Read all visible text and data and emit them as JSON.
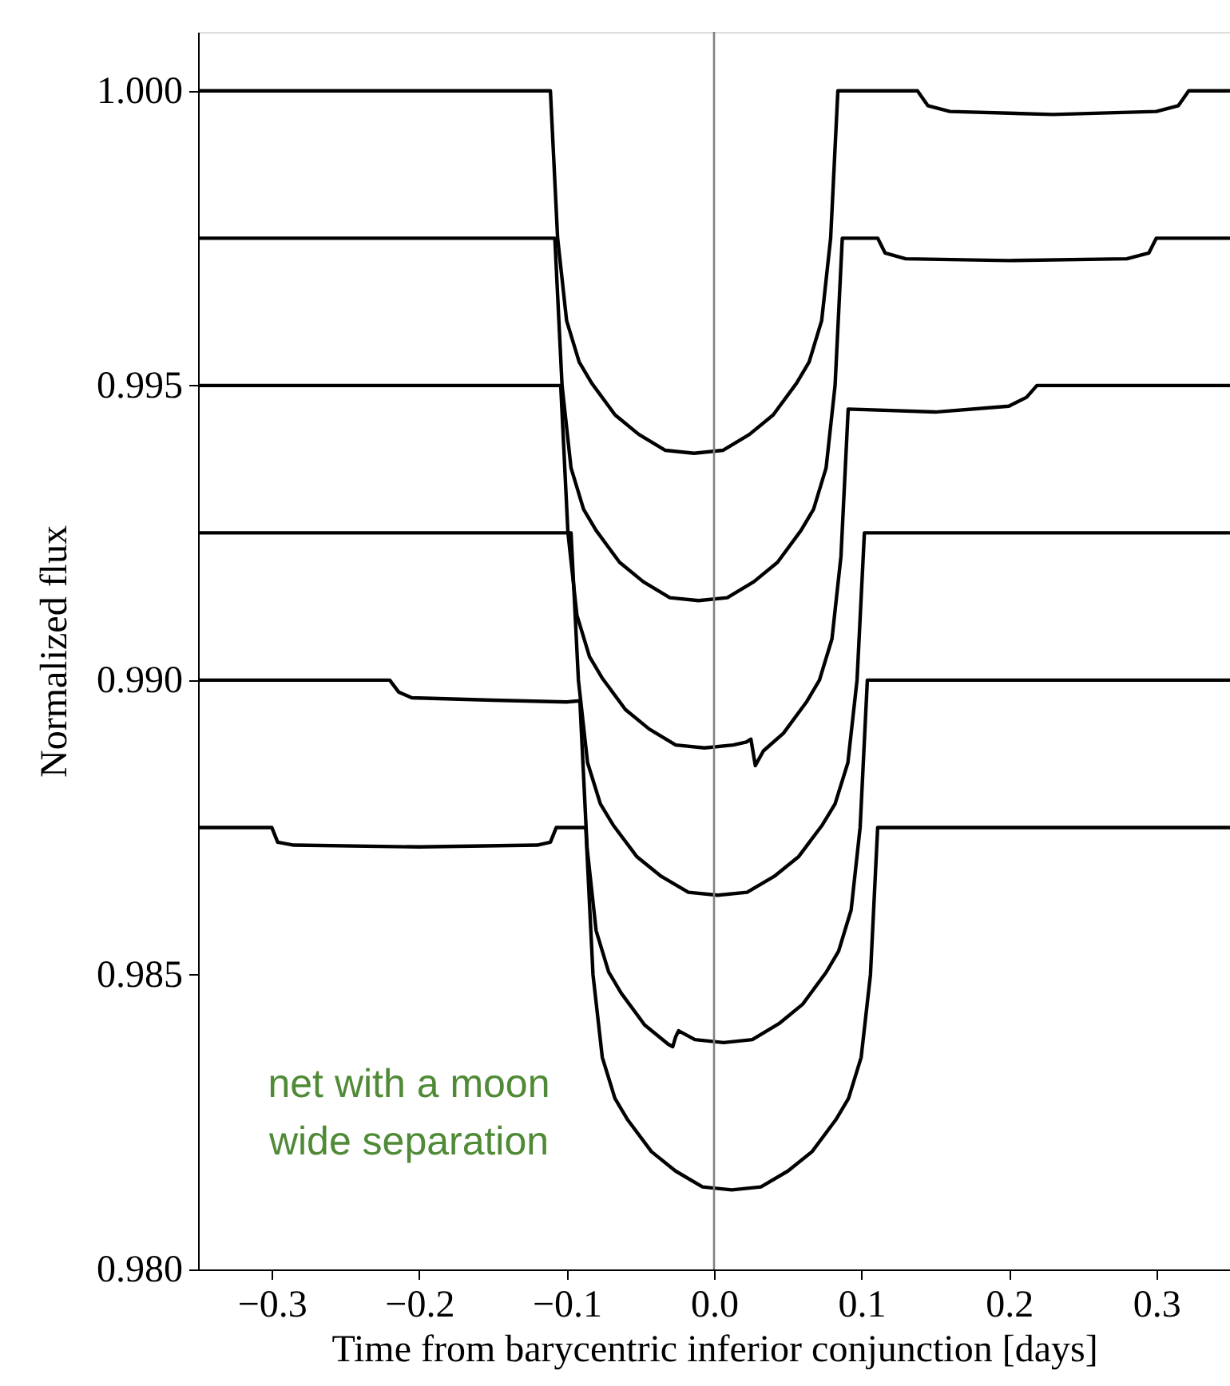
{
  "chart_data": {
    "type": "line",
    "xlabel": "Time from barycentric inferior conjunction [days]",
    "ylabel": "Normalized flux",
    "xlim": [
      -0.35,
      0.35
    ],
    "ylim": [
      0.98,
      1.001
    ],
    "xticks": [
      {
        "value": -0.3,
        "label": "−0.3"
      },
      {
        "value": -0.2,
        "label": "−0.2"
      },
      {
        "value": -0.1,
        "label": "−0.1"
      },
      {
        "value": 0,
        "label": "0.0"
      },
      0.1,
      0.2,
      0.3
    ],
    "yticks": [
      {
        "value": 0.98,
        "label": "0.980"
      },
      {
        "value": 0.985,
        "label": "0.985"
      },
      {
        "value": 0.99,
        "label": "0.990"
      },
      {
        "value": 0.995,
        "label": "0.995"
      },
      {
        "value": 1.0,
        "label": "1.000"
      }
    ],
    "grid": false,
    "legend": false,
    "marker": "none",
    "line_style": "solid",
    "ref_lines": [
      {
        "axis": "x",
        "value": 0,
        "color": "#808080"
      }
    ],
    "annotations": [
      "net with a moon\nwide separation"
    ],
    "series": [
      {
        "color": "#000000",
        "x": [
          -0.35,
          -0.111,
          -0.1061,
          -0.1,
          -0.0915,
          -0.083,
          -0.0671,
          -0.051,
          -0.033,
          -0.0135,
          0.006,
          0.024,
          0.0401,
          0.056,
          0.0645,
          0.073,
          0.0791,
          0.084,
          0.138,
          0.145,
          0.16,
          0.23,
          0.3,
          0.315,
          0.322,
          0.35
        ],
        "values": [
          1.0,
          1.0,
          0.9975,
          0.9961,
          0.9954,
          0.99504,
          0.9945,
          0.99417,
          0.9939,
          0.99385,
          0.9939,
          0.99417,
          0.9945,
          0.99504,
          0.9954,
          0.9961,
          0.9975,
          1.0,
          1.0,
          0.99975,
          0.99965,
          0.9996,
          0.99965,
          0.99975,
          1.0,
          1.0
        ]
      },
      {
        "color": "#000000",
        "x": [
          -0.35,
          -0.108,
          -0.1031,
          -0.097,
          -0.0885,
          -0.08,
          -0.0641,
          -0.048,
          -0.03,
          -0.0105,
          0.009,
          0.027,
          0.0431,
          0.059,
          0.0675,
          0.076,
          0.0821,
          0.087,
          0.111,
          0.116,
          0.13,
          0.2,
          0.28,
          0.295,
          0.3,
          0.35
        ],
        "values": [
          0.9975,
          0.9975,
          0.995,
          0.9936,
          0.9929,
          0.99254,
          0.992,
          0.99167,
          0.9914,
          0.99135,
          0.9914,
          0.99167,
          0.992,
          0.99254,
          0.9929,
          0.9936,
          0.995,
          0.9975,
          0.9975,
          0.99725,
          0.99715,
          0.99712,
          0.99715,
          0.99725,
          0.9975,
          0.9975
        ]
      },
      {
        "color": "#000000",
        "x": [
          -0.35,
          -0.104,
          -0.0991,
          -0.093,
          -0.0845,
          -0.076,
          -0.0601,
          -0.044,
          -0.026,
          -0.0065,
          0.013,
          0.022,
          0.025,
          0.028,
          0.0335,
          0.0471,
          0.063,
          0.0715,
          0.08,
          0.0861,
          0.091,
          0.15,
          0.2,
          0.212,
          0.219,
          0.35
        ],
        "values": [
          0.995,
          0.995,
          0.9925,
          0.9911,
          0.9904,
          0.99004,
          0.9895,
          0.98917,
          0.9889,
          0.98885,
          0.9889,
          0.98895,
          0.989,
          0.98855,
          0.9888,
          0.9891,
          0.98964,
          0.99,
          0.9907,
          0.9921,
          0.9946,
          0.99455,
          0.99465,
          0.9948,
          0.995,
          0.995
        ]
      },
      {
        "color": "#000000",
        "x": [
          -0.35,
          -0.097,
          -0.092,
          -0.0858,
          -0.0771,
          -0.0684,
          -0.0522,
          -0.0358,
          -0.0174,
          0.0025,
          0.0224,
          0.0408,
          0.0572,
          0.0734,
          0.0821,
          0.0908,
          0.097,
          0.102,
          0.35
        ],
        "values": [
          0.9925,
          0.9925,
          0.99,
          0.9886,
          0.9879,
          0.98754,
          0.987,
          0.98667,
          0.9864,
          0.98635,
          0.9864,
          0.98667,
          0.987,
          0.98754,
          0.9879,
          0.9886,
          0.99,
          0.9925,
          0.9925
        ]
      },
      {
        "color": "#000000",
        "x": [
          -0.35,
          -0.22,
          -0.214,
          -0.205,
          -0.15,
          -0.1,
          -0.091,
          -0.0861,
          -0.08,
          -0.0715,
          -0.063,
          -0.0471,
          -0.031,
          -0.028,
          -0.026,
          -0.024,
          -0.013,
          0.0065,
          0.026,
          0.044,
          0.0601,
          0.076,
          0.0845,
          0.093,
          0.0991,
          0.104,
          0.35
        ],
        "values": [
          0.99,
          0.99,
          0.9898,
          0.9897,
          0.98966,
          0.98963,
          0.98965,
          0.98715,
          0.98575,
          0.98505,
          0.98469,
          0.98415,
          0.98382,
          0.98378,
          0.98395,
          0.98405,
          0.9839,
          0.98385,
          0.9839,
          0.98417,
          0.9845,
          0.98504,
          0.9854,
          0.9861,
          0.9875,
          0.99,
          0.99
        ]
      },
      {
        "color": "#000000",
        "x": [
          -0.35,
          -0.3,
          -0.296,
          -0.285,
          -0.2,
          -0.12,
          -0.111,
          -0.107,
          -0.087,
          -0.0821,
          -0.0758,
          -0.0672,
          -0.0586,
          -0.0425,
          -0.0261,
          -0.0078,
          0.012,
          0.0318,
          0.0501,
          0.0665,
          0.0826,
          0.0912,
          0.0998,
          0.1061,
          0.111,
          0.35
        ],
        "values": [
          0.9875,
          0.9875,
          0.98725,
          0.9872,
          0.98717,
          0.9872,
          0.98725,
          0.9875,
          0.9875,
          0.985,
          0.9836,
          0.9829,
          0.98254,
          0.982,
          0.98167,
          0.9814,
          0.98135,
          0.9814,
          0.98167,
          0.982,
          0.98254,
          0.9829,
          0.9836,
          0.985,
          0.9875,
          0.9875
        ]
      }
    ]
  }
}
